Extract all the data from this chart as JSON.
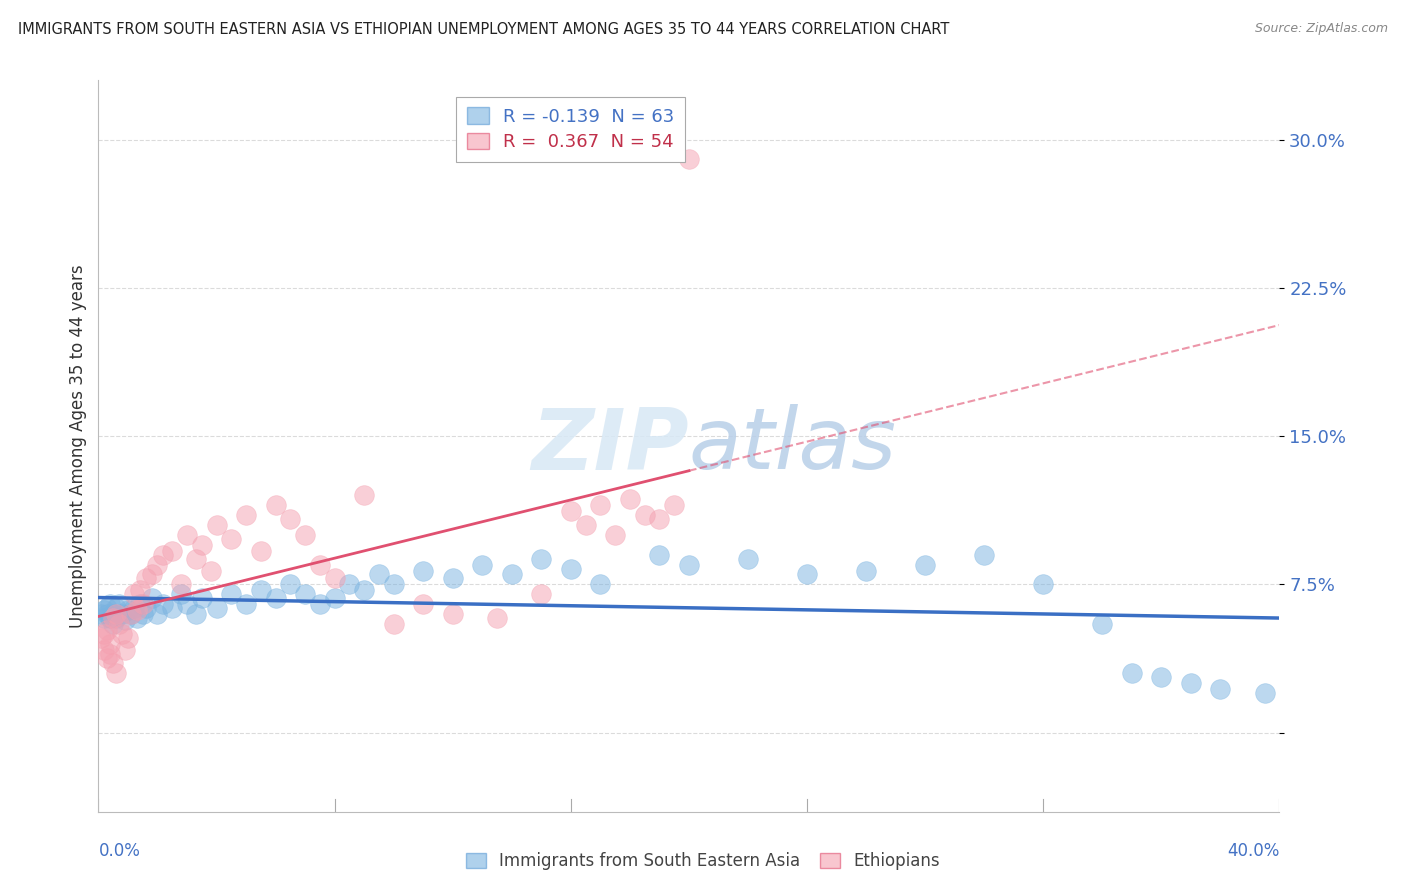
{
  "title": "IMMIGRANTS FROM SOUTH EASTERN ASIA VS ETHIOPIAN UNEMPLOYMENT AMONG AGES 35 TO 44 YEARS CORRELATION CHART",
  "source": "Source: ZipAtlas.com",
  "ylabel": "Unemployment Among Ages 35 to 44 years",
  "series1_label": "Immigrants from South Eastern Asia",
  "series2_label": "Ethiopians",
  "series1_color": "#7ab3e0",
  "series2_color": "#f4a0b0",
  "trendline1_color": "#3a6fc4",
  "trendline2_color": "#e05070",
  "background_color": "#ffffff",
  "grid_color": "#cccccc",
  "xlim": [
    0.0,
    0.4
  ],
  "ylim": [
    -0.04,
    0.33
  ],
  "yticks": [
    0.0,
    0.075,
    0.15,
    0.225,
    0.3
  ],
  "ytick_labels": [
    "",
    "7.5%",
    "15.0%",
    "22.5%",
    "30.0%"
  ],
  "legend1_text": "R = -0.139  N = 63",
  "legend2_text": "R =  0.367  N = 54",
  "watermark": "ZIPatlas",
  "series1_x": [
    0.001,
    0.002,
    0.002,
    0.003,
    0.003,
    0.004,
    0.004,
    0.005,
    0.005,
    0.006,
    0.006,
    0.007,
    0.008,
    0.009,
    0.01,
    0.011,
    0.012,
    0.013,
    0.014,
    0.015,
    0.016,
    0.018,
    0.02,
    0.022,
    0.025,
    0.028,
    0.03,
    0.033,
    0.035,
    0.04,
    0.045,
    0.05,
    0.055,
    0.06,
    0.065,
    0.07,
    0.075,
    0.08,
    0.085,
    0.09,
    0.095,
    0.1,
    0.11,
    0.12,
    0.13,
    0.14,
    0.15,
    0.16,
    0.17,
    0.19,
    0.2,
    0.22,
    0.24,
    0.26,
    0.28,
    0.3,
    0.32,
    0.34,
    0.35,
    0.36,
    0.37,
    0.38,
    0.395
  ],
  "series1_y": [
    0.06,
    0.062,
    0.058,
    0.063,
    0.06,
    0.058,
    0.065,
    0.06,
    0.055,
    0.058,
    0.063,
    0.065,
    0.06,
    0.057,
    0.062,
    0.06,
    0.063,
    0.058,
    0.065,
    0.06,
    0.063,
    0.068,
    0.06,
    0.065,
    0.063,
    0.07,
    0.065,
    0.06,
    0.068,
    0.063,
    0.07,
    0.065,
    0.072,
    0.068,
    0.075,
    0.07,
    0.065,
    0.068,
    0.075,
    0.072,
    0.08,
    0.075,
    0.082,
    0.078,
    0.085,
    0.08,
    0.088,
    0.083,
    0.075,
    0.09,
    0.085,
    0.088,
    0.08,
    0.082,
    0.085,
    0.09,
    0.075,
    0.055,
    0.03,
    0.028,
    0.025,
    0.022,
    0.02
  ],
  "series2_x": [
    0.001,
    0.002,
    0.002,
    0.003,
    0.003,
    0.004,
    0.004,
    0.005,
    0.005,
    0.006,
    0.006,
    0.007,
    0.008,
    0.009,
    0.01,
    0.011,
    0.012,
    0.013,
    0.014,
    0.015,
    0.016,
    0.018,
    0.02,
    0.022,
    0.025,
    0.028,
    0.03,
    0.033,
    0.035,
    0.038,
    0.04,
    0.045,
    0.05,
    0.055,
    0.06,
    0.065,
    0.07,
    0.075,
    0.08,
    0.09,
    0.1,
    0.11,
    0.12,
    0.135,
    0.15,
    0.16,
    0.165,
    0.17,
    0.175,
    0.18,
    0.185,
    0.19,
    0.195,
    0.2
  ],
  "series2_y": [
    0.048,
    0.05,
    0.042,
    0.052,
    0.038,
    0.045,
    0.04,
    0.058,
    0.035,
    0.06,
    0.03,
    0.055,
    0.05,
    0.042,
    0.048,
    0.06,
    0.07,
    0.062,
    0.072,
    0.065,
    0.078,
    0.08,
    0.085,
    0.09,
    0.092,
    0.075,
    0.1,
    0.088,
    0.095,
    0.082,
    0.105,
    0.098,
    0.11,
    0.092,
    0.115,
    0.108,
    0.1,
    0.085,
    0.078,
    0.12,
    0.055,
    0.065,
    0.06,
    0.058,
    0.07,
    0.112,
    0.105,
    0.115,
    0.1,
    0.118,
    0.11,
    0.108,
    0.115,
    0.29
  ]
}
